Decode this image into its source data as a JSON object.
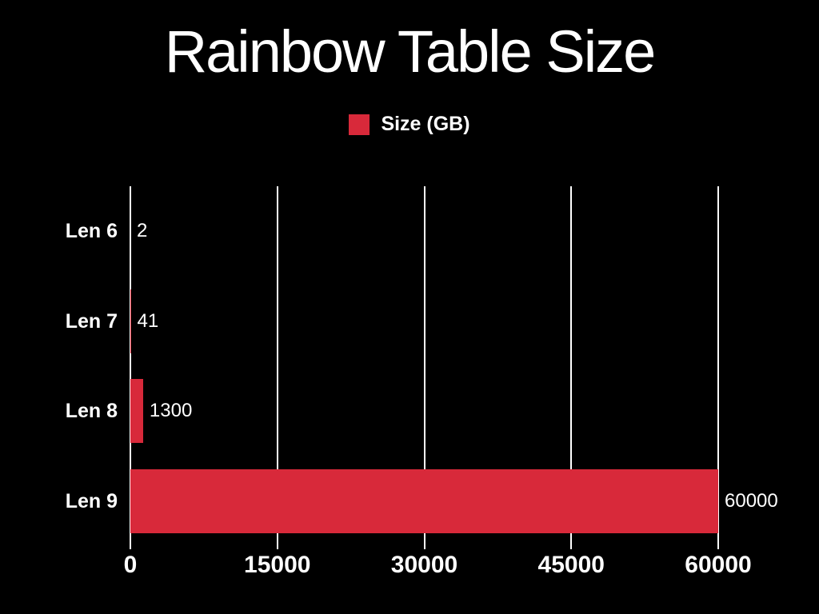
{
  "chart_data": {
    "type": "bar",
    "orientation": "horizontal",
    "title": "Rainbow Table Size",
    "series_name": "Size (GB)",
    "categories": [
      "Len 6",
      "Len 7",
      "Len 8",
      "Len 9"
    ],
    "values": [
      2,
      41,
      1300,
      60000
    ],
    "value_labels": [
      "2",
      "41",
      "1300",
      "60000"
    ],
    "x_ticks": [
      0,
      15000,
      30000,
      45000,
      60000
    ],
    "x_tick_labels": [
      "0",
      "15000",
      "30000",
      "45000",
      "60000"
    ],
    "xlim": [
      0,
      60000
    ],
    "grid": "vertical-only",
    "legend_position": "top-center",
    "colors": {
      "bar": "#D8293A",
      "background": "#000000",
      "text": "#FFFFFF",
      "gridline": "#FFFFFF"
    }
  }
}
